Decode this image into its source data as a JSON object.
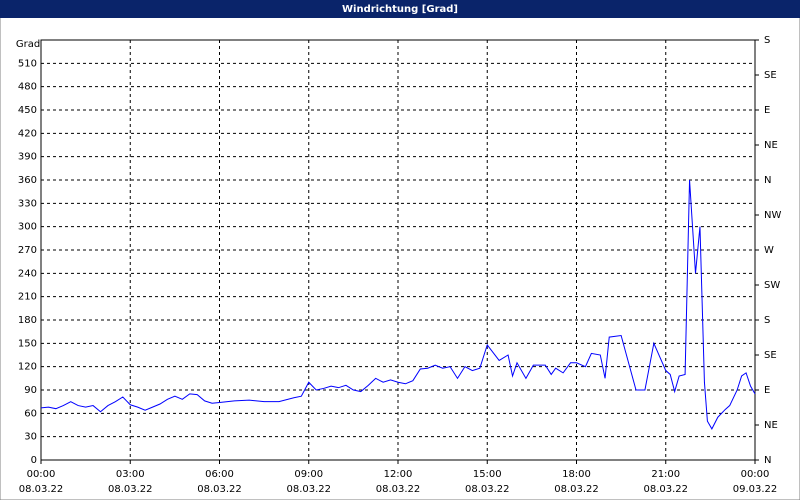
{
  "chart_data": {
    "type": "line",
    "title": "Windrichtung [Grad]",
    "ylabel": "Grad",
    "xlim": [
      0,
      24
    ],
    "xticks": [
      {
        "value": 0,
        "label": "00:00"
      },
      {
        "value": 3,
        "label": "03:00"
      },
      {
        "value": 6,
        "label": "06:00"
      },
      {
        "value": 9,
        "label": "09:00"
      },
      {
        "value": 12,
        "label": "12:00"
      },
      {
        "value": 15,
        "label": "15:00"
      },
      {
        "value": 18,
        "label": "18:00"
      },
      {
        "value": 21,
        "label": "21:00"
      },
      {
        "value": 24,
        "label": "00:00"
      }
    ],
    "xtick_dates": [
      "08.03.22",
      "08.03.22",
      "08.03.22",
      "08.03.22",
      "08.03.22",
      "08.03.22",
      "08.03.22",
      "08.03.22",
      "09.03.22"
    ],
    "ylim": [
      0,
      540
    ],
    "yticks": [
      0,
      30,
      60,
      90,
      120,
      150,
      180,
      210,
      240,
      270,
      300,
      330,
      360,
      390,
      420,
      450,
      480,
      510
    ],
    "y2lim": [
      0,
      540
    ],
    "y2ticks": [
      {
        "value": 0,
        "label": "N"
      },
      {
        "value": 45,
        "label": "NE"
      },
      {
        "value": 90,
        "label": "E"
      },
      {
        "value": 135,
        "label": "SE"
      },
      {
        "value": 180,
        "label": "S"
      },
      {
        "value": 225,
        "label": "SW"
      },
      {
        "value": 270,
        "label": "W"
      },
      {
        "value": 315,
        "label": "NW"
      },
      {
        "value": 360,
        "label": "N"
      },
      {
        "value": 405,
        "label": "NE"
      },
      {
        "value": 450,
        "label": "E"
      },
      {
        "value": 495,
        "label": "SE"
      },
      {
        "value": 540,
        "label": "S"
      }
    ],
    "grid": true,
    "series": [
      {
        "color": "#0000ff",
        "x": [
          0,
          0.25,
          0.5,
          0.75,
          1,
          1.25,
          1.5,
          1.75,
          2,
          2.25,
          2.5,
          2.75,
          3,
          3.25,
          3.5,
          3.75,
          4,
          4.25,
          4.5,
          4.75,
          5,
          5.25,
          5.5,
          5.75,
          6,
          6.5,
          7,
          7.5,
          8,
          8.5,
          8.75,
          9,
          9.25,
          9.5,
          9.75,
          10,
          10.25,
          10.5,
          10.75,
          11,
          11.25,
          11.5,
          11.75,
          12,
          12.25,
          12.5,
          12.75,
          13,
          13.25,
          13.5,
          13.75,
          14,
          14.25,
          14.5,
          14.75,
          15,
          15.4,
          15.7,
          15.85,
          16,
          16.3,
          16.55,
          16.95,
          17.15,
          17.3,
          17.55,
          17.8,
          18,
          18.3,
          18.5,
          18.8,
          18.96,
          19.1,
          19.5,
          20,
          20.3,
          20.6,
          21,
          21.15,
          21.3,
          21.45,
          21.65,
          21.8,
          21.9,
          22,
          22.15,
          22.3,
          22.4,
          22.55,
          22.75,
          23,
          23.15,
          23.4,
          23.55,
          23.7,
          23.85,
          24
        ],
        "values": [
          67,
          68,
          66,
          70,
          75,
          70,
          68,
          70,
          62,
          70,
          75,
          81,
          71,
          68,
          64,
          68,
          72,
          78,
          82,
          78,
          85,
          84,
          76,
          73,
          74,
          76,
          77,
          75,
          75,
          80,
          82,
          100,
          90,
          92,
          95,
          93,
          96,
          90,
          88,
          96,
          105,
          100,
          103,
          100,
          98,
          102,
          117,
          118,
          122,
          118,
          120,
          105,
          120,
          115,
          118,
          148,
          128,
          135,
          108,
          125,
          105,
          122,
          122,
          110,
          118,
          112,
          125,
          125,
          120,
          137,
          135,
          105,
          158,
          160,
          90,
          90,
          150,
          115,
          110,
          88,
          108,
          110,
          360,
          300,
          240,
          300,
          100,
          50,
          40,
          55,
          65,
          70,
          90,
          108,
          112,
          95,
          85
        ]
      }
    ]
  }
}
